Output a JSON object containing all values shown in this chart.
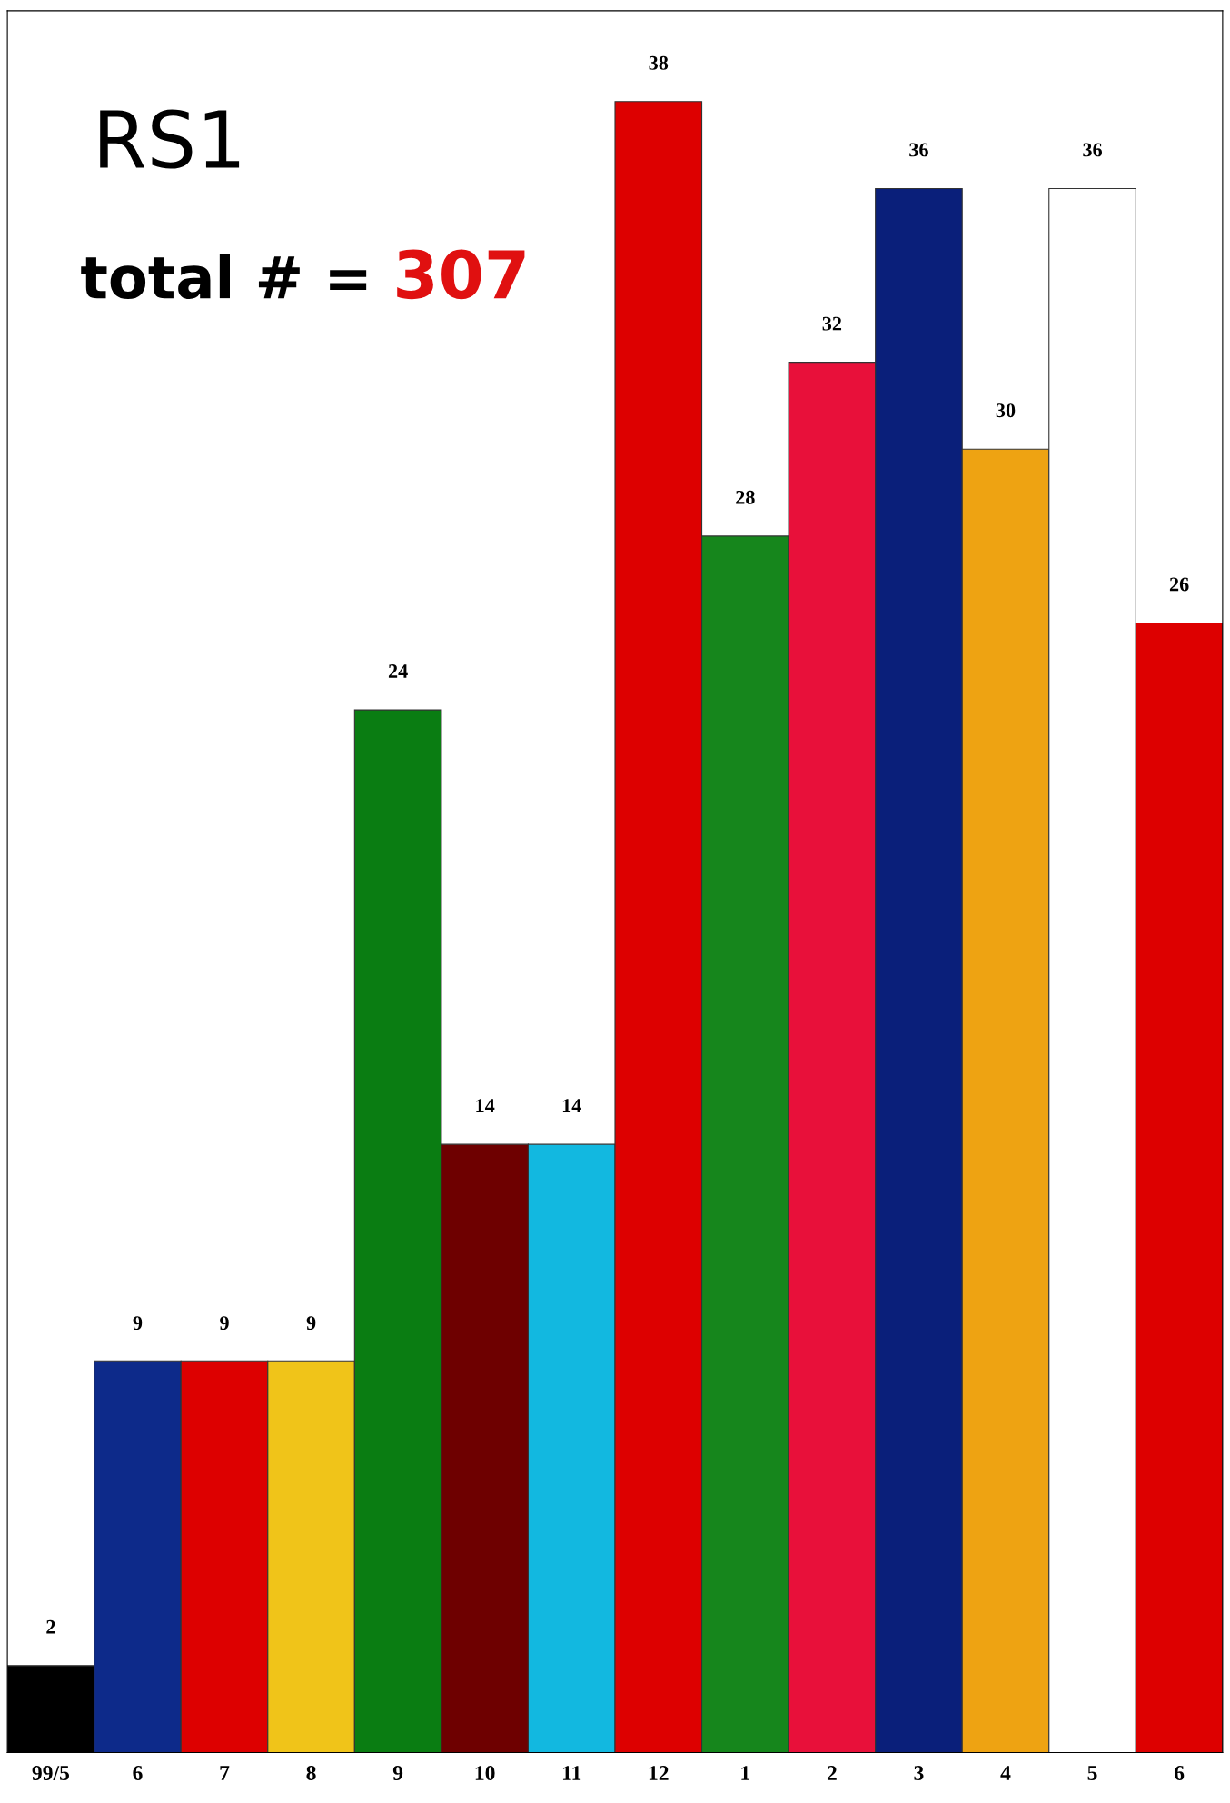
{
  "chart_data": {
    "type": "bar",
    "title": "RS1",
    "annotations": [
      "total # = 307"
    ],
    "categories": [
      "99/5",
      "6",
      "7",
      "8",
      "9",
      "10",
      "11",
      "12",
      "1",
      "2",
      "3",
      "4",
      "5",
      "6"
    ],
    "values": [
      2,
      9,
      9,
      9,
      24,
      14,
      14,
      38,
      28,
      32,
      36,
      30,
      36,
      26
    ],
    "colors": [
      "#000000",
      "#0d2a8a",
      "#dd0000",
      "#f0c419",
      "#0a7d12",
      "#6e0000",
      "#12b8e0",
      "#dd0000",
      "#16861c",
      "#e8103a",
      "#0a1f7a",
      "#eea312",
      "#ffffff",
      "#dd0000"
    ],
    "data_labels": true,
    "grid": false,
    "legend": false
  }
}
